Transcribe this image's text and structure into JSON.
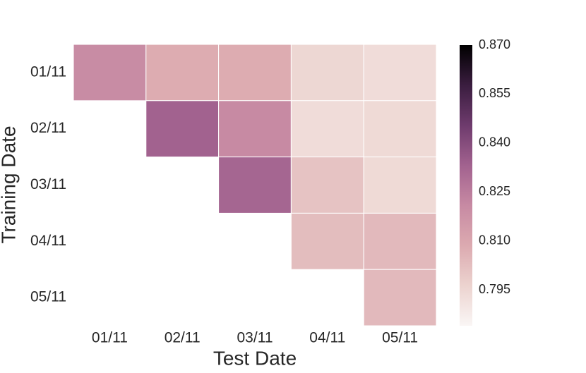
{
  "chart_data": {
    "type": "heatmap",
    "xlabel": "Test Date",
    "ylabel": "Training Date",
    "x_categories": [
      "01/11",
      "02/11",
      "03/11",
      "04/11",
      "05/11"
    ],
    "y_categories": [
      "01/11",
      "02/11",
      "03/11",
      "04/11",
      "05/11"
    ],
    "values": [
      [
        0.82,
        0.808,
        0.808,
        0.795,
        0.793
      ],
      [
        null,
        0.833,
        0.821,
        0.793,
        0.794
      ],
      [
        null,
        null,
        0.832,
        0.801,
        0.794
      ],
      [
        null,
        null,
        null,
        0.803,
        0.804
      ],
      [
        null,
        null,
        null,
        null,
        0.804
      ]
    ],
    "clim": [
      0.784,
      0.87
    ],
    "cticks": [
      {
        "value": 0.795,
        "label": "0.795"
      },
      {
        "value": 0.81,
        "label": "0.810"
      },
      {
        "value": 0.825,
        "label": "0.825"
      },
      {
        "value": 0.84,
        "label": "0.840"
      },
      {
        "value": 0.855,
        "label": "0.855"
      },
      {
        "value": 0.87,
        "label": "0.870"
      }
    ],
    "colormap": [
      "#faf6f5",
      "#ecd3cf",
      "#dcaab0",
      "#c78aa3",
      "#a2628f",
      "#6e3b6d",
      "#3a1d3f",
      "#000000"
    ]
  }
}
